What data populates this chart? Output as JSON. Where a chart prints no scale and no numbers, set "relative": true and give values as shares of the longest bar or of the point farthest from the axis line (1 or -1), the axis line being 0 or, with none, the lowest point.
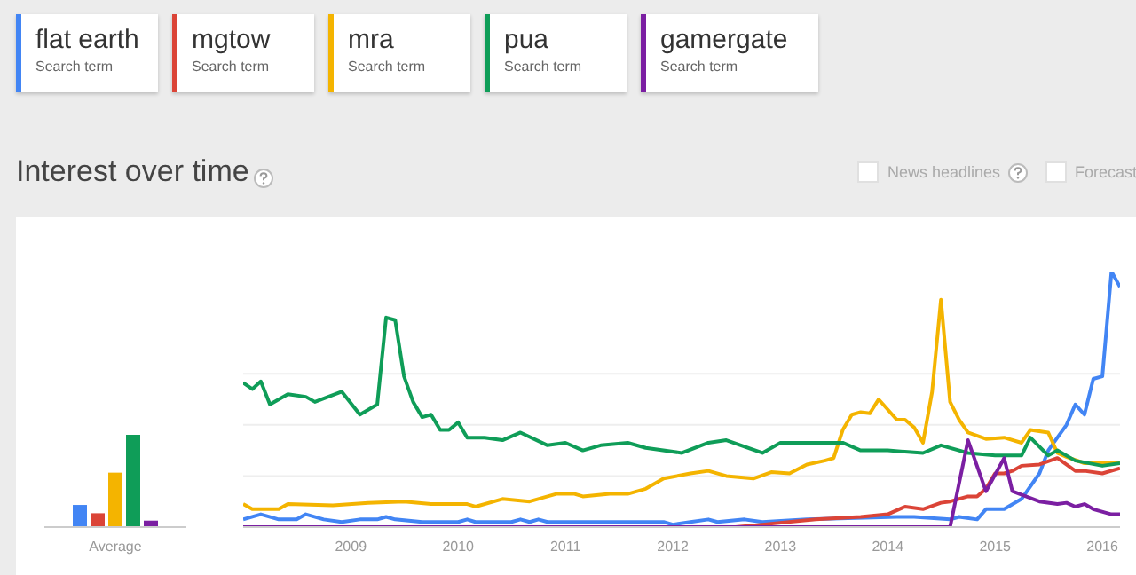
{
  "chart_data": [
    {
      "type": "line",
      "title": "Interest over time",
      "legend": "top left",
      "legend_title": "Search term",
      "relative": true,
      "grid": "y",
      "annotations": [
        "News headlines",
        "Forecast"
      ],
      "xlim": [
        "2008-01",
        "2016-03"
      ],
      "xticks": [
        "2009",
        "2010",
        "2011",
        "2012",
        "2013",
        "2014",
        "2015",
        "2016"
      ],
      "series": [
        {
          "name": "flat earth",
          "color": "#4285f4",
          "x": [
            "2008-01",
            "2008-03",
            "2008-05",
            "2008-07",
            "2008-08",
            "2008-10",
            "2008-12",
            "2009-02",
            "2009-04",
            "2009-05",
            "2009-06",
            "2009-09",
            "2010-01",
            "2010-02",
            "2010-03",
            "2010-07",
            "2010-08",
            "2010-09",
            "2010-10",
            "2010-11",
            "2011-03",
            "2011-12",
            "2012-01",
            "2012-03",
            "2012-05",
            "2012-06",
            "2012-09",
            "2012-11",
            "2013-04",
            "2014-02",
            "2014-04",
            "2014-08",
            "2014-09",
            "2014-11",
            "2014-12",
            "2015-02",
            "2015-04",
            "2015-06",
            "2015-07",
            "2015-08",
            "2015-09",
            "2015-10",
            "2015-11",
            "2015-12",
            "2016-01",
            "2016-02",
            "2016-03"
          ],
          "values": [
            0.03,
            0.05,
            0.03,
            0.03,
            0.05,
            0.03,
            0.02,
            0.03,
            0.03,
            0.04,
            0.03,
            0.02,
            0.02,
            0.03,
            0.02,
            0.02,
            0.03,
            0.02,
            0.03,
            0.02,
            0.02,
            0.02,
            0.01,
            0.02,
            0.03,
            0.02,
            0.03,
            0.02,
            0.03,
            0.04,
            0.04,
            0.03,
            0.04,
            0.03,
            0.07,
            0.07,
            0.11,
            0.21,
            0.3,
            0.35,
            0.4,
            0.48,
            0.44,
            0.58,
            0.59,
            1,
            0.94
          ]
        },
        {
          "name": "mgtow",
          "color": "#db4437",
          "x": [
            "2012-08",
            "2012-11",
            "2013-05",
            "2013-10",
            "2014-01",
            "2014-03",
            "2014-05",
            "2014-07",
            "2014-08",
            "2014-10",
            "2014-11",
            "2014-12",
            "2015-01",
            "2015-02",
            "2015-03",
            "2015-04",
            "2015-06",
            "2015-08",
            "2015-10",
            "2015-11",
            "2016-01",
            "2016-03"
          ],
          "values": [
            0,
            0.01,
            0.03,
            0.04,
            0.05,
            0.08,
            0.07,
            0.095,
            0.1,
            0.12,
            0.12,
            0.15,
            0.21,
            0.21,
            0.22,
            0.24,
            0.245,
            0.27,
            0.22,
            0.22,
            0.21,
            0.23
          ]
        },
        {
          "name": "mra",
          "color": "#f4b400",
          "x": [
            "2008-01",
            "2008-02",
            "2008-05",
            "2008-06",
            "2008-11",
            "2009-03",
            "2009-07",
            "2009-10",
            "2010-02",
            "2010-03",
            "2010-06",
            "2010-09",
            "2010-12",
            "2011-02",
            "2011-03",
            "2011-06",
            "2011-08",
            "2011-10",
            "2011-12",
            "2012-03",
            "2012-05",
            "2012-07",
            "2012-10",
            "2012-12",
            "2013-02",
            "2013-04",
            "2013-06",
            "2013-07",
            "2013-08",
            "2013-09",
            "2013-10",
            "2013-11",
            "2013-12",
            "2014-02",
            "2014-03",
            "2014-04",
            "2014-05",
            "2014-06",
            "2014-07",
            "2014-08",
            "2014-09",
            "2014-10",
            "2014-12",
            "2015-02",
            "2015-04",
            "2015-05",
            "2015-07",
            "2015-08",
            "2015-09",
            "2015-11",
            "2016-03"
          ],
          "values": [
            0.09,
            0.07,
            0.07,
            0.09,
            0.085,
            0.095,
            0.1,
            0.09,
            0.09,
            0.08,
            0.11,
            0.1,
            0.13,
            0.13,
            0.12,
            0.13,
            0.13,
            0.15,
            0.19,
            0.21,
            0.22,
            0.2,
            0.19,
            0.215,
            0.21,
            0.245,
            0.26,
            0.27,
            0.38,
            0.44,
            0.45,
            0.445,
            0.5,
            0.42,
            0.42,
            0.39,
            0.33,
            0.53,
            0.89,
            0.49,
            0.42,
            0.37,
            0.345,
            0.35,
            0.33,
            0.38,
            0.37,
            0.29,
            0.275,
            0.25,
            0.25
          ]
        },
        {
          "name": "pua",
          "color": "#0f9d58",
          "x": [
            "2008-01",
            "2008-02",
            "2008-03",
            "2008-04",
            "2008-06",
            "2008-08",
            "2008-09",
            "2008-12",
            "2009-02",
            "2009-04",
            "2009-05",
            "2009-06",
            "2009-07",
            "2009-08",
            "2009-09",
            "2009-10",
            "2009-11",
            "2009-12",
            "2010-01",
            "2010-02",
            "2010-04",
            "2010-06",
            "2010-08",
            "2010-11",
            "2011-01",
            "2011-03",
            "2011-05",
            "2011-08",
            "2011-10",
            "2012-02",
            "2012-05",
            "2012-07",
            "2012-11",
            "2013-01",
            "2013-05",
            "2013-08",
            "2013-10",
            "2014-01",
            "2014-05",
            "2014-07",
            "2014-10",
            "2015-01",
            "2015-04",
            "2015-05",
            "2015-07",
            "2015-08",
            "2015-10",
            "2016-01",
            "2016-03"
          ],
          "values": [
            0.565,
            0.54,
            0.57,
            0.48,
            0.52,
            0.51,
            0.49,
            0.53,
            0.44,
            0.48,
            0.82,
            0.81,
            0.59,
            0.49,
            0.43,
            0.44,
            0.38,
            0.38,
            0.41,
            0.35,
            0.35,
            0.34,
            0.37,
            0.32,
            0.33,
            0.3,
            0.32,
            0.33,
            0.31,
            0.29,
            0.33,
            0.34,
            0.29,
            0.33,
            0.33,
            0.33,
            0.3,
            0.3,
            0.29,
            0.32,
            0.29,
            0.28,
            0.28,
            0.35,
            0.28,
            0.3,
            0.26,
            0.24,
            0.25
          ]
        },
        {
          "name": "gamergate",
          "color": "#7b1fa2",
          "x": [
            "2008-01",
            "2014-08",
            "2014-10",
            "2014-12",
            "2015-02",
            "2015-03",
            "2015-06",
            "2015-08",
            "2015-09",
            "2015-10",
            "2015-11",
            "2015-12",
            "2016-02",
            "2016-03"
          ],
          "values": [
            0,
            0,
            0.34,
            0.14,
            0.27,
            0.14,
            0.1,
            0.09,
            0.095,
            0.08,
            0.09,
            0.07,
            0.05,
            0.05
          ]
        }
      ]
    },
    {
      "type": "bar",
      "relative": true,
      "categories": [
        "Average"
      ],
      "series": [
        {
          "color": "#4285f4",
          "values": [
            0.24
          ]
        },
        {
          "color": "#db4437",
          "values": [
            0.15
          ]
        },
        {
          "color": "#f4b400",
          "values": [
            0.59
          ]
        },
        {
          "color": "#0f9d58",
          "values": [
            1
          ]
        },
        {
          "color": "#7b1fa2",
          "values": [
            0.07
          ]
        }
      ]
    }
  ]
}
